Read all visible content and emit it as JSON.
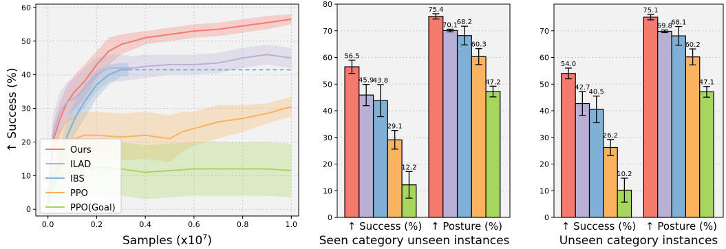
{
  "colors": {
    "ours": "#f47a6e",
    "ilad": "#b9b0d6",
    "ibs": "#7fb0d5",
    "ppo": "#f9b35e",
    "ppo_goal": "#a6d65e",
    "panel_bg": "#f2f2f2",
    "grid": "#c8c8c8"
  },
  "chart_data": [
    {
      "type": "line",
      "xlabel": "Samples (x10",
      "xlabel_exp": "7",
      "xlabel_close": ")",
      "ylabel": "↑  Success (%)",
      "xlim": [
        -0.05,
        1.03
      ],
      "ylim": [
        -2,
        61
      ],
      "xticks": [
        0.0,
        0.2,
        0.4,
        0.6,
        0.8,
        1.0
      ],
      "xtick_labels": [
        "0.0",
        "0.2",
        "0.4",
        "0.6",
        "0.8",
        "1.0"
      ],
      "yticks": [
        0,
        10,
        20,
        30,
        40,
        50,
        60
      ],
      "ytick_labels": [
        "0",
        "10",
        "20",
        "30",
        "40",
        "50",
        "60"
      ],
      "grid": true,
      "legend": "bottom-left",
      "series": [
        {
          "name": "Ours",
          "color_key": "ours",
          "x": [
            0.0,
            0.02,
            0.05,
            0.08,
            0.11,
            0.15,
            0.2,
            0.25,
            0.3,
            0.35,
            0.4,
            0.5,
            0.6,
            0.7,
            0.8,
            0.9,
            1.0
          ],
          "y": [
            2,
            20,
            27,
            32,
            35,
            38,
            43,
            47,
            49,
            50,
            51,
            52,
            53,
            53.5,
            54.5,
            55.5,
            56.5
          ],
          "band": [
            2,
            5,
            5,
            5,
            5,
            5,
            4,
            4,
            3,
            2.5,
            2,
            2,
            2,
            2,
            2,
            2,
            1.5
          ]
        },
        {
          "name": "ILAD",
          "color_key": "ilad",
          "x": [
            0.0,
            0.02,
            0.05,
            0.08,
            0.11,
            0.15,
            0.2,
            0.25,
            0.3,
            0.35,
            0.4,
            0.5,
            0.6,
            0.7,
            0.8,
            0.9,
            1.0
          ],
          "y": [
            2,
            22,
            29,
            32,
            33,
            36,
            40,
            42,
            42,
            42,
            42.5,
            43,
            43,
            43.5,
            45,
            46,
            45
          ],
          "band": [
            2,
            6,
            6,
            6,
            6,
            6,
            5,
            4,
            4,
            3.5,
            3.5,
            3,
            3,
            3,
            3,
            3,
            3
          ]
        },
        {
          "name": "IBS",
          "color_key": "ibs",
          "x": [
            0.0,
            0.02,
            0.05,
            0.08,
            0.11,
            0.15,
            0.2,
            0.25,
            0.3,
            0.33
          ],
          "y": [
            2,
            8,
            14,
            22,
            27,
            32,
            37,
            40,
            41.5,
            41.5
          ],
          "band": [
            2,
            4,
            5,
            5,
            5,
            5,
            4,
            3,
            2,
            2
          ],
          "dashed_extension": {
            "from": 0.33,
            "to": 1.0,
            "y": 41.5
          }
        },
        {
          "name": "PPO",
          "color_key": "ppo",
          "x": [
            0.0,
            0.02,
            0.05,
            0.08,
            0.11,
            0.15,
            0.2,
            0.3,
            0.4,
            0.5,
            0.55,
            0.6,
            0.7,
            0.8,
            0.9,
            1.0
          ],
          "y": [
            2,
            12,
            17,
            20,
            21,
            22,
            22,
            21.5,
            22,
            21,
            23,
            24,
            26,
            27,
            28.5,
            30.5
          ],
          "band": [
            2,
            6,
            7,
            7,
            7,
            7,
            7,
            7,
            7,
            7,
            6,
            5,
            5,
            4,
            3,
            3
          ]
        },
        {
          "name": "PPO(Goal)",
          "color_key": "ppo_goal",
          "x": [
            0.0,
            0.02,
            0.05,
            0.08,
            0.11,
            0.15,
            0.2,
            0.3,
            0.4,
            0.5,
            0.6,
            0.7,
            0.8,
            0.9,
            1.0
          ],
          "y": [
            2,
            7,
            10,
            11,
            12,
            12.5,
            12.5,
            12,
            11,
            11.5,
            12,
            12,
            12,
            12,
            11.5
          ],
          "band": [
            2,
            5,
            7,
            8,
            8,
            8,
            8,
            8,
            8,
            8,
            8,
            8,
            8,
            8,
            8
          ]
        }
      ]
    },
    {
      "type": "bar",
      "title": "Seen category unseen instances",
      "group_labels": [
        "↑  Success (%)",
        "↑  Posture (%)"
      ],
      "ylim": [
        0,
        80
      ],
      "yticks": [
        0,
        10,
        20,
        30,
        40,
        50,
        60,
        70,
        80
      ],
      "ytick_labels": [
        "0",
        "10",
        "20",
        "30",
        "40",
        "50",
        "60",
        "70",
        "80"
      ],
      "grid": true,
      "series_order": [
        "ours",
        "ilad",
        "ibs",
        "ppo",
        "ppo_goal"
      ],
      "groups": [
        {
          "values": [
            56.5,
            45.9,
            43.8,
            29.1,
            12.2
          ],
          "labels": [
            "56.5",
            "45.9",
            "43.8",
            "29.1",
            "12.2"
          ],
          "errors": [
            2.5,
            4.0,
            6.0,
            3.5,
            5.0
          ]
        },
        {
          "values": [
            75.4,
            70.1,
            68.2,
            60.3,
            47.2
          ],
          "labels": [
            "75.4",
            "70.1",
            "68.2",
            "60.3",
            "47.2"
          ],
          "errors": [
            1.0,
            0.5,
            3.5,
            3.0,
            2.0
          ]
        }
      ]
    },
    {
      "type": "bar",
      "title": "Unseen category instances",
      "group_labels": [
        "↑  Success (%)",
        "↑  Posture (%)"
      ],
      "ylim": [
        0,
        80
      ],
      "yticks": [
        0,
        10,
        20,
        30,
        40,
        50,
        60,
        70
      ],
      "ytick_labels": [
        "0",
        "10",
        "20",
        "30",
        "40",
        "50",
        "60",
        "70"
      ],
      "grid": true,
      "series_order": [
        "ours",
        "ilad",
        "ibs",
        "ppo",
        "ppo_goal"
      ],
      "groups": [
        {
          "values": [
            54.0,
            42.7,
            40.5,
            26.2,
            10.2
          ],
          "labels": [
            "54.0",
            "42.7",
            "40.5",
            "26.2",
            "10.2"
          ],
          "errors": [
            2.0,
            4.5,
            5.0,
            3.0,
            4.5
          ]
        },
        {
          "values": [
            75.1,
            69.8,
            68.1,
            60.2,
            47.1
          ],
          "labels": [
            "75.1",
            "69.8",
            "68.1",
            "60.2",
            "47.1"
          ],
          "errors": [
            1.0,
            0.5,
            3.5,
            3.0,
            2.0
          ]
        }
      ]
    }
  ]
}
